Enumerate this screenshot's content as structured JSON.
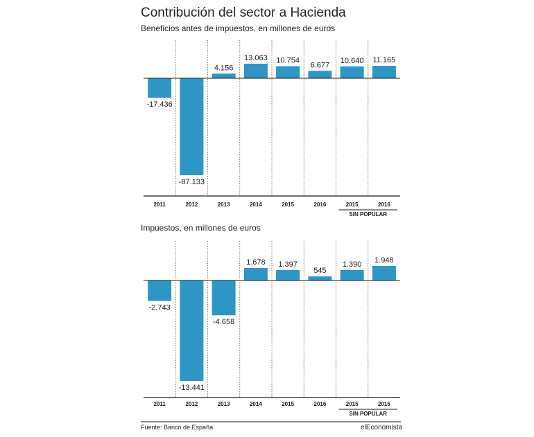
{
  "title": "Contribución del sector a Hacienda",
  "source": "Fuente: Banco de España",
  "brand": "elEconomista",
  "colors": {
    "bar": "#2e96c4",
    "axis": "#1a1a1a",
    "separator": "#555555"
  },
  "chart_data": [
    {
      "type": "bar",
      "title": "Contribución del sector a Hacienda",
      "subtitle": "Beneficios antes de impuestos, en millones de euros",
      "categories": [
        "2011",
        "2012",
        "2013",
        "2014",
        "2015",
        "2016",
        "2015",
        "2016"
      ],
      "values": [
        -17436,
        -87133,
        4156,
        13063,
        10754,
        6677,
        10640,
        11165
      ],
      "labels": [
        "-17.436",
        "-87.133",
        "4.156",
        "13.063",
        "10.754",
        "6.677",
        "10.640",
        "11.165"
      ],
      "group_note": "SIN POPULAR",
      "group_note_covers": [
        "2015",
        "2016"
      ],
      "grid": false,
      "legend": "none"
    },
    {
      "type": "bar",
      "subtitle": "Impuestos, en millones de euros",
      "categories": [
        "2011",
        "2012",
        "2013",
        "2014",
        "2015",
        "2016",
        "2015",
        "2016"
      ],
      "values": [
        -2743,
        -13441,
        -4658,
        1678,
        1397,
        545,
        1390,
        1948
      ],
      "labels": [
        "-2.743",
        "-13.441",
        "-4.658",
        "1.678",
        "1.397",
        "545",
        "1.390",
        "1.948"
      ],
      "group_note": "SIN POPULAR",
      "group_note_covers": [
        "2015",
        "2016"
      ],
      "grid": false,
      "legend": "none"
    }
  ]
}
